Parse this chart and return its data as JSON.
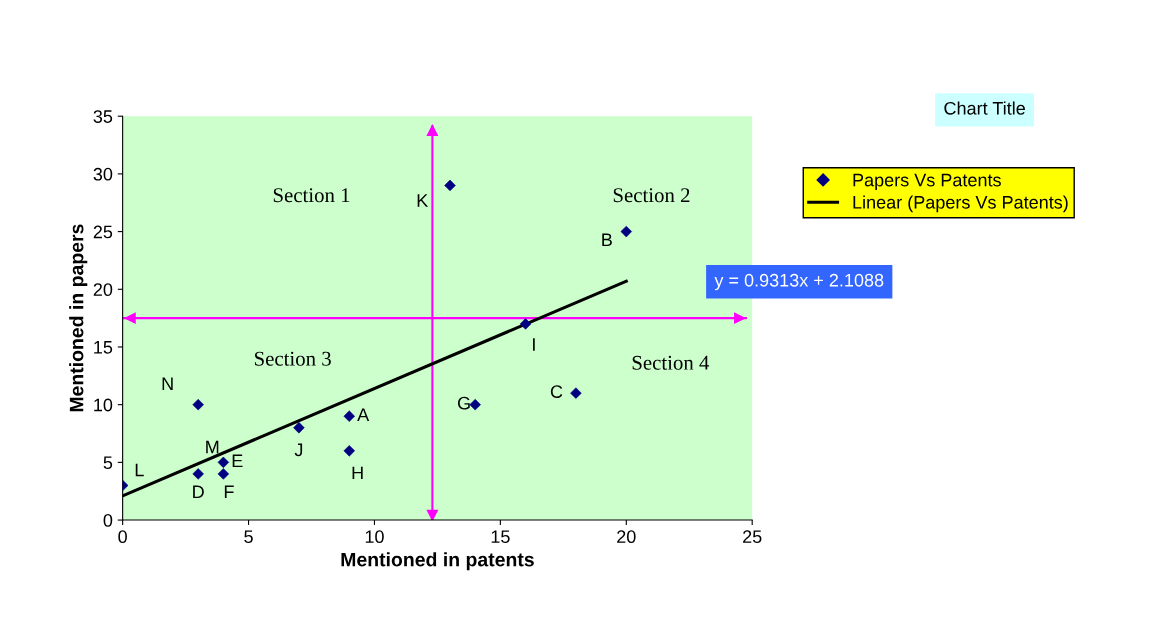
{
  "chart_data": {
    "type": "scatter",
    "title": "Chart Title",
    "xlabel": "Mentioned in patents",
    "ylabel": "Mentioned in papers",
    "xlim": [
      0,
      25
    ],
    "ylim": [
      0,
      35
    ],
    "xticks": [
      0,
      5,
      10,
      15,
      20,
      25
    ],
    "yticks": [
      0,
      5,
      10,
      15,
      20,
      25,
      30,
      35
    ],
    "grid": false,
    "legend": "top right",
    "marker": "diamond",
    "series": [
      {
        "name": "Papers Vs Patents",
        "color": "#000080",
        "x": [
          0,
          3,
          3,
          4,
          4,
          7,
          9,
          9,
          14,
          13,
          16,
          18,
          20
        ],
        "values": [
          3,
          4,
          10,
          5,
          4,
          8,
          9,
          6,
          10,
          29,
          17,
          11,
          25
        ]
      },
      {
        "name": "Linear (Papers Vs Patents)",
        "type": "line",
        "marker": "none",
        "color": "#000000",
        "x": [
          0,
          20
        ],
        "values": [
          2.1,
          20.7
        ]
      }
    ],
    "ref_lines": [
      {
        "axis": "x",
        "value": 12.3,
        "color": "#ff00ff"
      },
      {
        "axis": "y",
        "value": 17.5,
        "color": "#ff00ff"
      }
    ],
    "annotations": [
      {
        "text": "L",
        "x": 0,
        "y": 3
      },
      {
        "text": "D",
        "x": 3,
        "y": 4
      },
      {
        "text": "N",
        "x": 3,
        "y": 10
      },
      {
        "text": "M",
        "x": 4,
        "y": 5
      },
      {
        "text": "E",
        "x": 4,
        "y": 5
      },
      {
        "text": "F",
        "x": 4,
        "y": 4
      },
      {
        "text": "J",
        "x": 7,
        "y": 8
      },
      {
        "text": "A",
        "x": 9,
        "y": 9
      },
      {
        "text": "H",
        "x": 9,
        "y": 6
      },
      {
        "text": "G",
        "x": 14,
        "y": 10
      },
      {
        "text": "K",
        "x": 13,
        "y": 29
      },
      {
        "text": "I",
        "x": 16,
        "y": 17
      },
      {
        "text": "C",
        "x": 18,
        "y": 11
      },
      {
        "text": "B",
        "x": 20,
        "y": 25
      },
      "Section 1",
      "Section 2",
      "Section 3",
      "Section 4",
      "y = 0.9313x + 2.1088"
    ]
  }
}
